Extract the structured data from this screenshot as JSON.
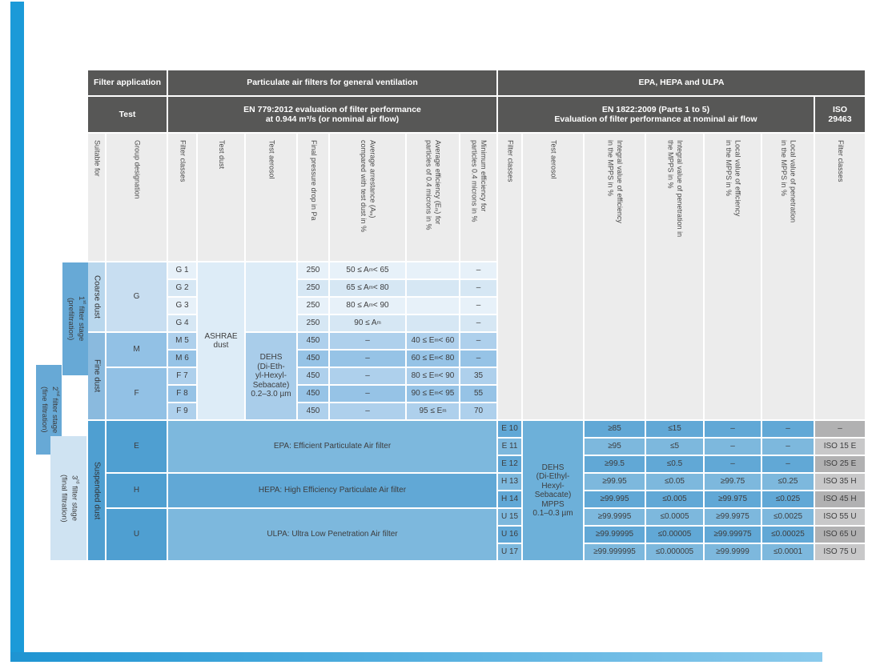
{
  "colors": {
    "brand_blue": "#1b9ad8",
    "brand_blue_light": "#8bcaec",
    "header_dark": "#575756",
    "band_gray": "#ececec",
    "blue_dark_row": "#61a8d6",
    "blue_light_row": "#7db8dd",
    "iso_gray_dark": "#b1b1b2",
    "iso_gray_light": "#c8c8c9"
  },
  "header": {
    "row1": {
      "filter_application": "Filter application",
      "particulate": "Particulate air filters for general ventilation",
      "epa": "EPA, HEPA and ULPA"
    },
    "row2": {
      "test": "Test",
      "en779": "EN 779:2012 evaluation of filter performance<br>at 0.944 m³/s (or nominal air flow)",
      "en1822": "EN 1822:2009 (Parts 1 to 5)<br>Evaluation of filter performance at nominal air flow",
      "iso": "ISO<br>29463"
    },
    "columns": [
      "Suitable for",
      "Group designation",
      "Filter classes",
      "Test dust",
      "Test aerosol",
      "Final pressure drop in Pa",
      "Average arrestance (A<sub>m</sub>)<br>compared with test dust in %",
      "Average efficiency (E<sub>m</sub>) for<br>particles of 0.4 microns in %",
      "Minimum efficiency for<br>particles 0.4 microns in %",
      "Filter classes",
      "Test aerosol",
      "Integral value of efficiency<br>in the MPPS in %",
      "Integral value of penetration in<br>the MPPS in %",
      "Local value of efficiency<br>in the MPPS in %",
      "Local value of penetration<br>in the MPPS in %",
      "Filter classes"
    ]
  },
  "stages": [
    {
      "label": "1<sup>st</sup> filter stage<br>(prefiltration)"
    },
    {
      "label": "2<sup>nd</sup> filter stage<br>(fine filtration)"
    },
    {
      "label": "3<sup>rd</sup> filter stage<br>(final filtration)"
    }
  ],
  "body_labels": {
    "coarse": "Coarse dust",
    "fine": "Fine dust",
    "suspended": "Suspended dust",
    "g": "G",
    "m": "M",
    "f": "F",
    "e": "E",
    "h": "H",
    "u": "U"
  },
  "en779": {
    "test_dust": "ASHRAE<br>dust",
    "test_aerosol": "DEHS<br>(Di-Eth-<br>yl-Hexyl-<br>Sebacate)<br>0.2–3.0 µm",
    "rows": [
      {
        "cls": "G 1",
        "pa": "250",
        "arr": "50 ≤ A<sub>m</sub> < 65",
        "eff": "",
        "min": "–"
      },
      {
        "cls": "G 2",
        "pa": "250",
        "arr": "65 ≤ A<sub>m</sub> < 80",
        "eff": "",
        "min": "–"
      },
      {
        "cls": "G 3",
        "pa": "250",
        "arr": "80 ≤ A<sub>m</sub> < 90",
        "eff": "",
        "min": "–"
      },
      {
        "cls": "G 4",
        "pa": "250",
        "arr": "90 ≤ A<sub>m</sub>",
        "eff": "",
        "min": "–"
      },
      {
        "cls": "M 5",
        "pa": "450",
        "arr": "–",
        "eff": "40 ≤ E<sub>m</sub> < 60",
        "min": "–"
      },
      {
        "cls": "M 6",
        "pa": "450",
        "arr": "–",
        "eff": "60 ≤ E<sub>m</sub> < 80",
        "min": "–"
      },
      {
        "cls": "F 7",
        "pa": "450",
        "arr": "–",
        "eff": "80 ≤ E<sub>m</sub> < 90",
        "min": "35"
      },
      {
        "cls": "F 8",
        "pa": "450",
        "arr": "–",
        "eff": "90 ≤ E<sub>m</sub> < 95",
        "min": "55"
      },
      {
        "cls": "F 9",
        "pa": "450",
        "arr": "–",
        "eff": "95 ≤ E<sub>m</sub>",
        "min": "70"
      }
    ]
  },
  "en1822": {
    "test_aerosol": "DEHS<br>(Di-Ethyl-<br>Hexyl-<br>Sebacate)<br>MPPS<br>0.1–0.3 µm",
    "spans": [
      "EPA: Efficient Particulate Air filter",
      "HEPA: High Efficiency Particulate Air filter",
      "ULPA: Ultra Low Penetration Air filter"
    ],
    "rows": [
      {
        "cls": "E 10",
        "ie": "≥85",
        "ip": "≤15",
        "le": "–",
        "lp": "–",
        "iso": "–"
      },
      {
        "cls": "E 11",
        "ie": "≥95",
        "ip": "≤5",
        "le": "–",
        "lp": "–",
        "iso": "ISO 15 E"
      },
      {
        "cls": "E 12",
        "ie": "≥99.5",
        "ip": "≤0.5",
        "le": "–",
        "lp": "–",
        "iso": "ISO 25 E"
      },
      {
        "cls": "H 13",
        "ie": "≥99.95",
        "ip": "≤0.05",
        "le": "≥99.75",
        "lp": "≤0.25",
        "iso": "ISO 35 H"
      },
      {
        "cls": "H 14",
        "ie": "≥99.995",
        "ip": "≤0.005",
        "le": "≥99.975",
        "lp": "≤0.025",
        "iso": "ISO 45 H"
      },
      {
        "cls": "U 15",
        "ie": "≥99.9995",
        "ip": "≤0.0005",
        "le": "≥99.9975",
        "lp": "≤0.0025",
        "iso": "ISO 55 U"
      },
      {
        "cls": "U 16",
        "ie": "≥99.99995",
        "ip": "≤0.00005",
        "le": "≥99.99975",
        "lp": "≤0.00025",
        "iso": "ISO 65 U"
      },
      {
        "cls": "U 17",
        "ie": "≥99.999995",
        "ip": "≤0.000005",
        "le": "≥99.9999",
        "lp": "≤0.0001",
        "iso": "ISO 75 U"
      }
    ]
  }
}
